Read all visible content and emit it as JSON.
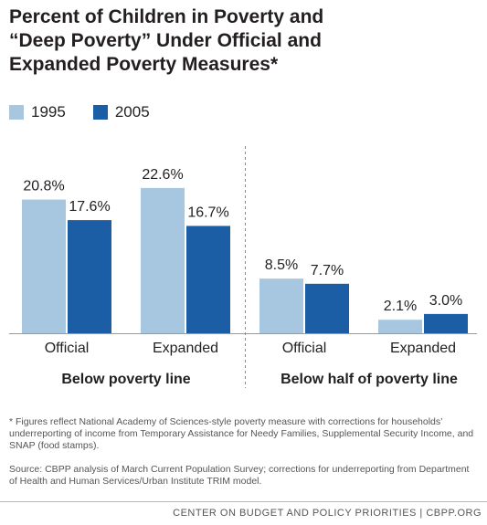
{
  "chart_data": {
    "type": "bar",
    "title": "Percent of Children in Poverty and\n“Deep Poverty” Under Official and\nExpanded Poverty Measures*",
    "series": [
      {
        "name": "1995",
        "color": "#a7c6e0",
        "values": [
          20.8,
          22.6,
          8.5,
          2.1
        ],
        "labels": [
          "20.8%",
          "22.6%",
          "8.5%",
          "2.1%"
        ]
      },
      {
        "name": "2005",
        "color": "#1b5ea6",
        "values": [
          17.6,
          16.7,
          7.7,
          3.0
        ],
        "labels": [
          "17.6%",
          "16.7%",
          "7.7%",
          "3.0%"
        ]
      }
    ],
    "categories": [
      "Official",
      "Expanded",
      "Official",
      "Expanded"
    ],
    "groups": [
      {
        "label": "Below poverty line",
        "categories": [
          0,
          1
        ]
      },
      {
        "label": "Below half of poverty line",
        "categories": [
          2,
          3
        ]
      }
    ],
    "ylim": [
      0,
      25
    ],
    "grid": false,
    "legend_position": "top-left"
  },
  "footnote": "* Figures reflect National Academy of Sciences-style poverty measure with corrections for households’ underreporting of income from Temporary Assistance for Needy Families, Supplemental Security Income, and SNAP (food stamps).",
  "source": "Source: CBPP analysis of March Current Population Survey; corrections for underreporting from Department of Health and Human Services/Urban Institute TRIM model.",
  "credit": "CENTER ON BUDGET AND POLICY PRIORITIES | CBPP.ORG"
}
